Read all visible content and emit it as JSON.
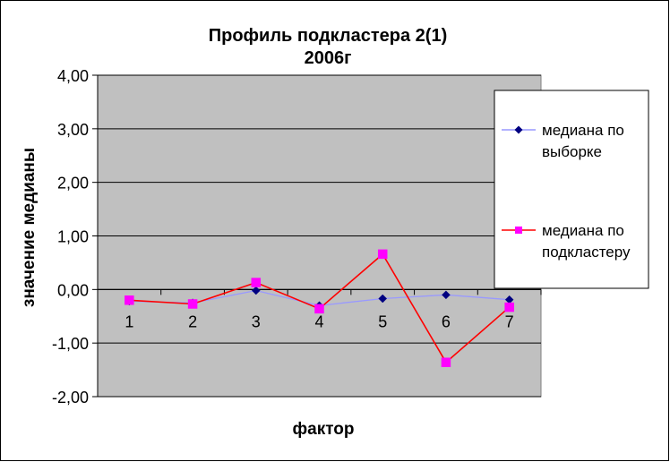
{
  "chart_data": {
    "type": "line",
    "title": "Профиль подкластера  2(1)",
    "subtitle": "2006г",
    "xlabel": "фактор",
    "ylabel": "значение медианы",
    "categories": [
      "1",
      "2",
      "3",
      "4",
      "5",
      "6",
      "7"
    ],
    "ylim": [
      -2,
      4
    ],
    "yticks": [
      4,
      3,
      2,
      1,
      0,
      -1,
      -2
    ],
    "ytick_labels": [
      "4,00",
      "3,00",
      "2,00",
      "1,00",
      "0,00",
      "-1,00",
      "-2,00"
    ],
    "grid": true,
    "legend_position": "right",
    "series": [
      {
        "name_line1": "медиана по",
        "name_line2": "выборке",
        "values": [
          -0.22,
          -0.25,
          -0.02,
          -0.3,
          -0.17,
          -0.1,
          -0.19
        ],
        "line_color": "#9999ff",
        "marker_color": "#000080",
        "marker": "diamond"
      },
      {
        "name_line1": "медиана по",
        "name_line2": "подкластеру",
        "values": [
          -0.2,
          -0.27,
          0.13,
          -0.36,
          0.66,
          -1.36,
          -0.33
        ],
        "line_color": "#ff0000",
        "marker_color": "#ff00ff",
        "marker": "square"
      }
    ]
  },
  "colors": {
    "plot_background": "#c0c0c0",
    "gridline": "#000000",
    "frame": "#000000"
  }
}
